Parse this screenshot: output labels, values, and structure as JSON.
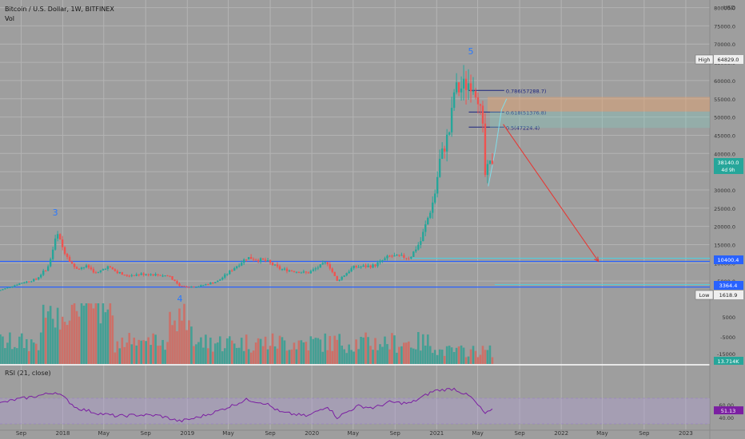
{
  "header": {
    "title": "Bitcoin / U.S. Dollar, 1W, BITFINEX",
    "vol_label": "Vol",
    "rsi_label": "RSI (21, close)"
  },
  "currency": "USD",
  "colors": {
    "background": "#9e9e9e",
    "grid": "#b3b3b3",
    "up": "#26a69a",
    "down": "#ef5350",
    "volume_up": "#3a9e92",
    "volume_down": "#d06a62",
    "rsi_line": "#7b1fa2",
    "rsi_band": "#b39ddb",
    "support_line": "#2962ff",
    "fib_line": "#1a237e",
    "projection": "#e53935",
    "wave_label": "#2979ff"
  },
  "chart_data": [
    {
      "type": "candlestick",
      "title": "Bitcoin / U.S. Dollar, 1W, BITFINEX",
      "y_axis": {
        "ticks": [
          5000,
          10000,
          15000,
          20000,
          25000,
          30000,
          35000,
          40000,
          45000,
          50000,
          55000,
          60000,
          65000,
          70000,
          75000,
          80000
        ],
        "ylim": [
          0,
          81000
        ]
      },
      "x_axis": {
        "tick_labels": [
          "Sep",
          "2018",
          "May",
          "Sep",
          "2019",
          "May",
          "Sep",
          "2020",
          "May",
          "Sep",
          "2021",
          "May",
          "Sep",
          "2022",
          "May",
          "Sep",
          "2023"
        ]
      },
      "price_labels": [
        {
          "text": "High",
          "value": "64829.0",
          "price": 64829
        },
        {
          "text": "",
          "value": "38140.0",
          "sub": "4d 9h",
          "price": 38140
        },
        {
          "text": "",
          "value": "10400.4",
          "price": 10400
        },
        {
          "text": "",
          "value": "3364.4",
          "price": 3364
        },
        {
          "text": "Low",
          "value": "1618.9",
          "price": 1618
        }
      ],
      "fib_levels": [
        {
          "label": "0.786(57288.7)",
          "price": 57288.7
        },
        {
          "label": "0.618(51376.8)",
          "price": 51376.8
        },
        {
          "label": "0.5(47224.4)",
          "price": 47224.4
        }
      ],
      "horizontal_lines": [
        10400,
        3364
      ],
      "wave_labels": [
        {
          "text": "3",
          "date": "2017-12-10",
          "price": 22000
        },
        {
          "text": "4",
          "date": "2018-12-10",
          "price": 0
        },
        {
          "text": "5",
          "date": "2021-04-11",
          "price": 70000
        }
      ],
      "projection": {
        "from": {
          "date": "2021-07-15",
          "price": 48000
        },
        "to": {
          "date": "2022-04-20",
          "price": 10400
        }
      },
      "weekly_close_anchors": [
        [
          "2017-07-01",
          2500
        ],
        [
          "2017-09-01",
          4500
        ],
        [
          "2017-10-15",
          5500
        ],
        [
          "2017-11-20",
          9000
        ],
        [
          "2017-12-15",
          18000
        ],
        [
          "2018-01-01",
          14000
        ],
        [
          "2018-02-05",
          8500
        ],
        [
          "2018-03-15",
          9000
        ],
        [
          "2018-04-10",
          7000
        ],
        [
          "2018-05-10",
          9000
        ],
        [
          "2018-07-01",
          6500
        ],
        [
          "2018-09-01",
          7000
        ],
        [
          "2018-11-10",
          6400
        ],
        [
          "2018-12-10",
          3500
        ],
        [
          "2019-02-01",
          3500
        ],
        [
          "2019-04-01",
          5000
        ],
        [
          "2019-06-25",
          11500
        ],
        [
          "2019-08-20",
          10500
        ],
        [
          "2019-10-01",
          8300
        ],
        [
          "2019-12-20",
          7200
        ],
        [
          "2020-02-15",
          10200
        ],
        [
          "2020-03-15",
          5000
        ],
        [
          "2020-05-01",
          8800
        ],
        [
          "2020-07-01",
          9200
        ],
        [
          "2020-08-15",
          11800
        ],
        [
          "2020-10-15",
          11500
        ],
        [
          "2020-11-15",
          16000
        ],
        [
          "2020-12-25",
          28000
        ],
        [
          "2021-01-10",
          38000
        ],
        [
          "2021-02-10",
          47000
        ],
        [
          "2021-02-21",
          57000
        ],
        [
          "2021-03-15",
          58000
        ],
        [
          "2021-04-11",
          60000
        ],
        [
          "2021-05-01",
          57000
        ],
        [
          "2021-05-16",
          46000
        ],
        [
          "2021-05-23",
          34000
        ],
        [
          "2021-06-13",
          38140
        ]
      ]
    },
    {
      "type": "bar",
      "title": "Vol",
      "y_axis": {
        "tick_labels": [
          "5000",
          "-5000",
          "-15000"
        ]
      },
      "last_value": "13.714K"
    },
    {
      "type": "line",
      "title": "RSI (21, close)",
      "y_axis": {
        "ticks": [
          40,
          60
        ],
        "band": [
          30,
          70
        ]
      },
      "last_value": "51.13",
      "anchors": [
        [
          "2017-07-01",
          62
        ],
        [
          "2017-08-15",
          68
        ],
        [
          "2017-10-01",
          72
        ],
        [
          "2017-12-15",
          80
        ],
        [
          "2018-02-10",
          55
        ],
        [
          "2018-04-10",
          47
        ],
        [
          "2018-06-10",
          42
        ],
        [
          "2018-08-10",
          44
        ],
        [
          "2018-10-10",
          43
        ],
        [
          "2018-12-10",
          34
        ],
        [
          "2019-02-01",
          40
        ],
        [
          "2019-04-01",
          50
        ],
        [
          "2019-06-25",
          68
        ],
        [
          "2019-08-20",
          62
        ],
        [
          "2019-10-01",
          48
        ],
        [
          "2019-12-20",
          42
        ],
        [
          "2020-02-15",
          58
        ],
        [
          "2020-03-15",
          40
        ],
        [
          "2020-05-15",
          58
        ],
        [
          "2020-07-01",
          55
        ],
        [
          "2020-08-15",
          64
        ],
        [
          "2020-10-15",
          62
        ],
        [
          "2020-12-25",
          82
        ],
        [
          "2021-02-21",
          85
        ],
        [
          "2021-04-11",
          72
        ],
        [
          "2021-05-23",
          46
        ],
        [
          "2021-06-13",
          51
        ]
      ]
    }
  ]
}
